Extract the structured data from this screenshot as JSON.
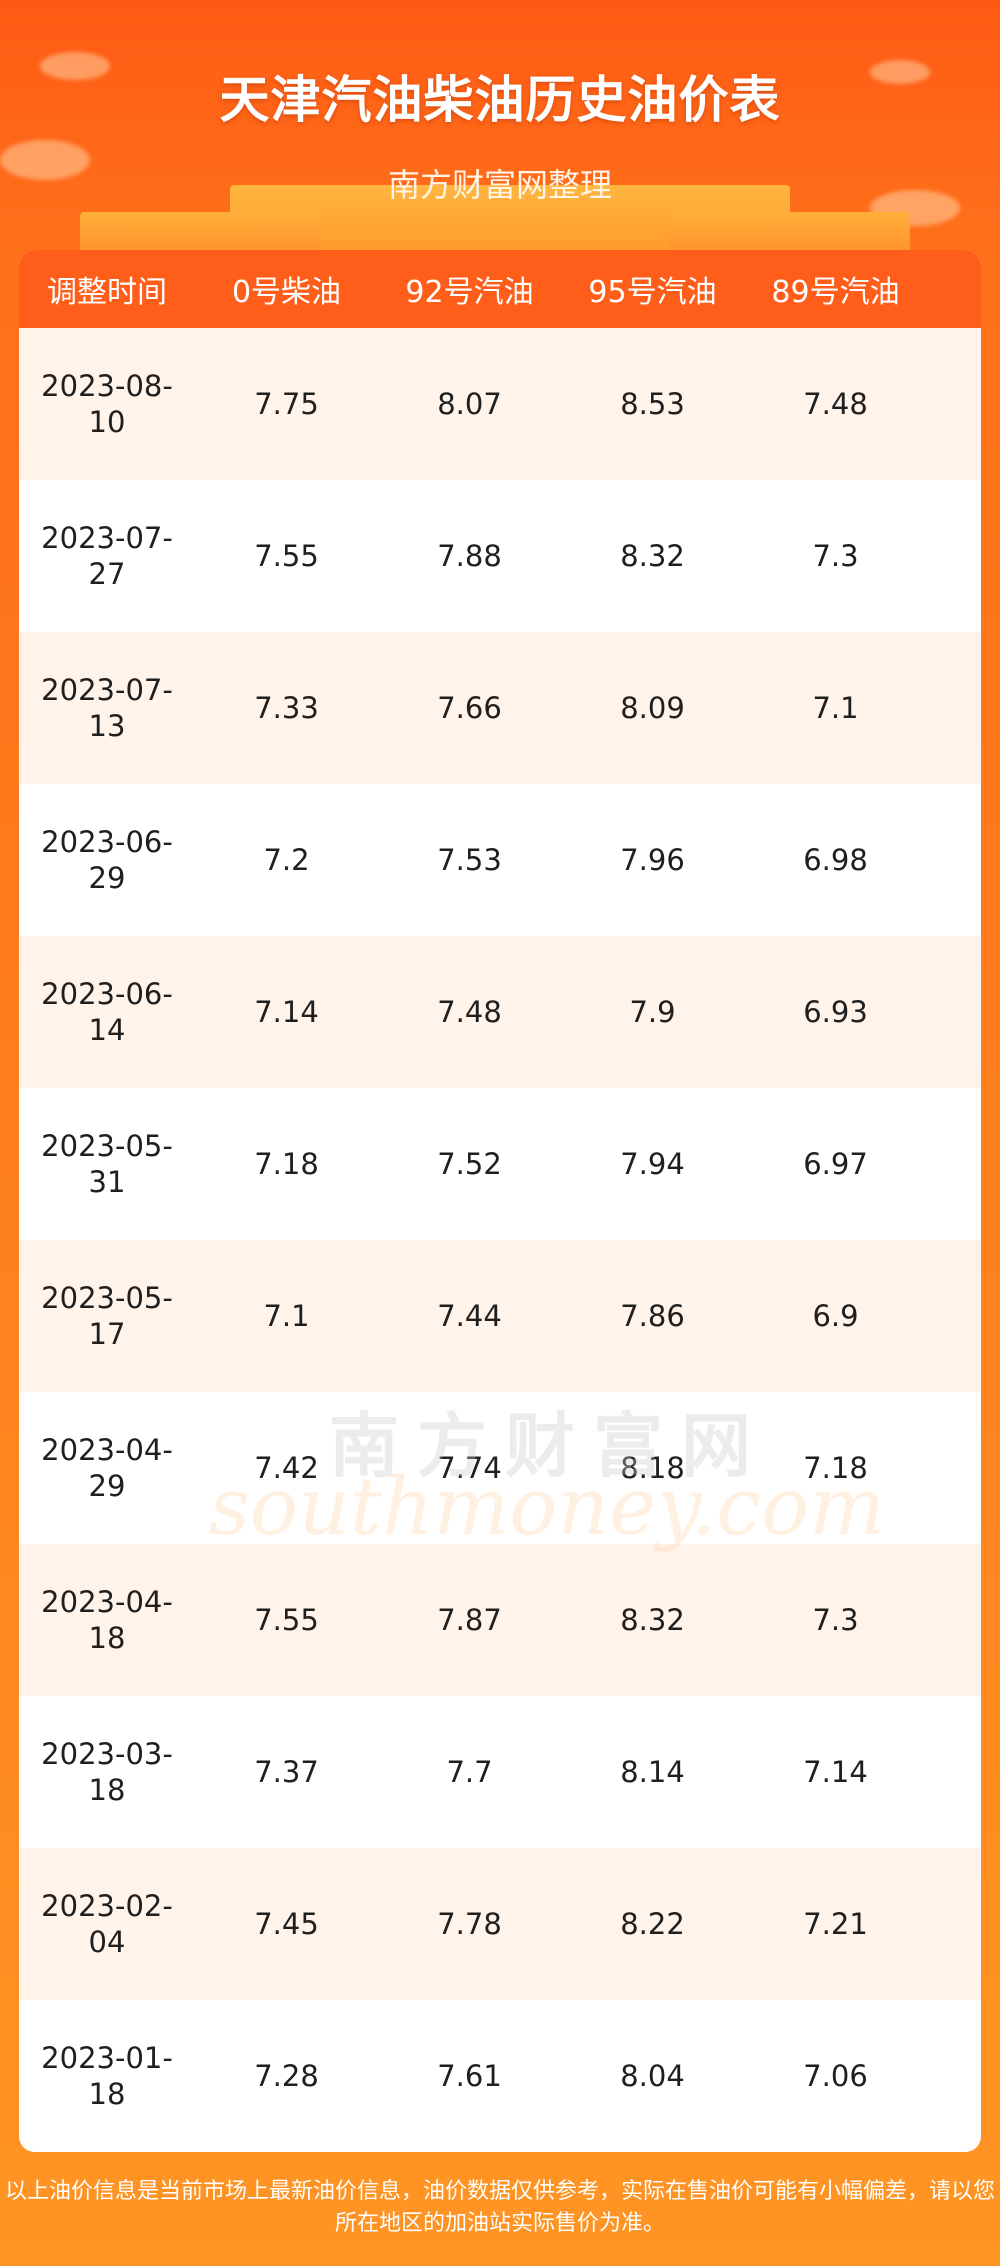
{
  "header": {
    "title": "天津汽油柴油历史油价表",
    "subtitle": "南方财富网整理"
  },
  "table": {
    "columns": [
      "调整时间",
      "0号柴油",
      "92号汽油",
      "95号汽油",
      "89号汽油"
    ],
    "rows": [
      [
        "2023-08-10",
        "7.75",
        "8.07",
        "8.53",
        "7.48"
      ],
      [
        "2023-07-27",
        "7.55",
        "7.88",
        "8.32",
        "7.3"
      ],
      [
        "2023-07-13",
        "7.33",
        "7.66",
        "8.09",
        "7.1"
      ],
      [
        "2023-06-29",
        "7.2",
        "7.53",
        "7.96",
        "6.98"
      ],
      [
        "2023-06-14",
        "7.14",
        "7.48",
        "7.9",
        "6.93"
      ],
      [
        "2023-05-31",
        "7.18",
        "7.52",
        "7.94",
        "6.97"
      ],
      [
        "2023-05-17",
        "7.1",
        "7.44",
        "7.86",
        "6.9"
      ],
      [
        "2023-04-29",
        "7.42",
        "7.74",
        "8.18",
        "7.18"
      ],
      [
        "2023-04-18",
        "7.55",
        "7.87",
        "8.32",
        "7.3"
      ],
      [
        "2023-03-18",
        "7.37",
        "7.7",
        "8.14",
        "7.14"
      ],
      [
        "2023-02-04",
        "7.45",
        "7.78",
        "8.22",
        "7.21"
      ],
      [
        "2023-01-18",
        "7.28",
        "7.61",
        "8.04",
        "7.06"
      ]
    ]
  },
  "watermark": {
    "cn": "南方财富网",
    "en": "southmoney.com"
  },
  "footer": {
    "note": "以上油价信息是当前市场上最新油价信息，油价数据仅供参考，实际在售油价可能有小幅偏差，请以您所在地区的加油站实际售价为准。"
  },
  "colors": {
    "background_top": "#ff5a14",
    "background_bottom": "#ff9524",
    "table_header": "#ff5e1a",
    "row_alt": "#fff3ea"
  }
}
